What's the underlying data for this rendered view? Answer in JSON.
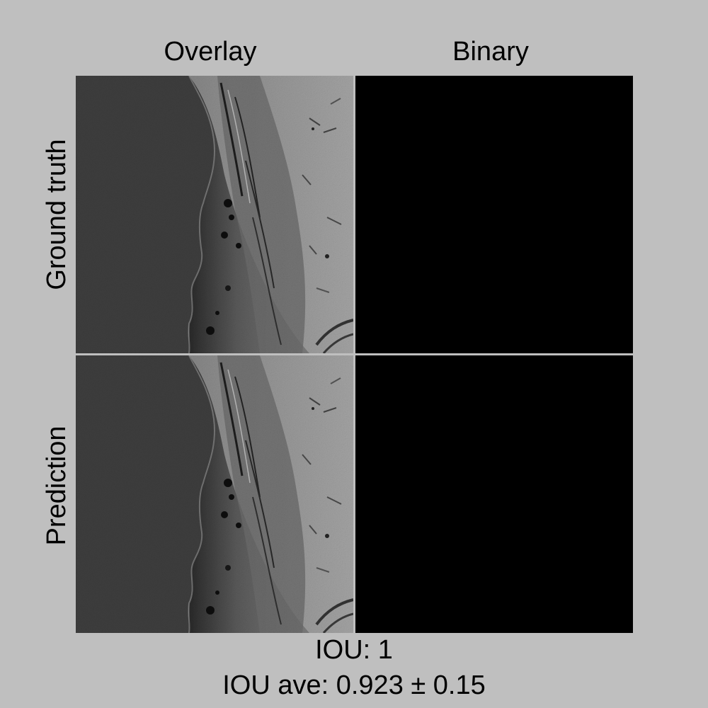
{
  "columns": {
    "overlay": "Overlay",
    "binary": "Binary"
  },
  "rows": {
    "ground_truth": "Ground truth",
    "prediction": "Prediction"
  },
  "metrics": {
    "iou": "IOU: 1",
    "iou_ave": "IOU ave: 0.923 ± 0.15"
  },
  "colors": {
    "background": "#bfbfbf",
    "binary_mask": "#000000",
    "tissue_dark": "#3e3e3e"
  }
}
